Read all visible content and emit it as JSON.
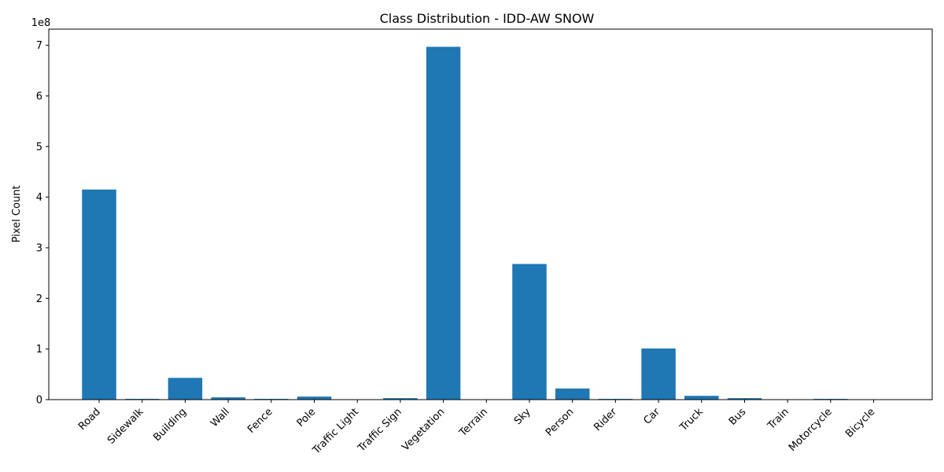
{
  "chart_data": {
    "type": "bar",
    "title": "Class Distribution - IDD-AW SNOW",
    "xlabel": "",
    "ylabel": "Pixel Count",
    "offset_label": "1e8",
    "categories": [
      "Road",
      "Sidewalk",
      "Building",
      "Wall",
      "Fence",
      "Pole",
      "Traffic Light",
      "Traffic Sign",
      "Vegetation",
      "Terrain",
      "Sky",
      "Person",
      "Rider",
      "Car",
      "Truck",
      "Bus",
      "Train",
      "Motorcycle",
      "Bicycle"
    ],
    "values": [
      415000000,
      1500000,
      43000000,
      4500000,
      1500000,
      6000000,
      0,
      3000000,
      697000000,
      0,
      268000000,
      22000000,
      1500000,
      101000000,
      7500000,
      3000000,
      0,
      1500000,
      0
    ],
    "yticks": [
      0,
      1,
      2,
      3,
      4,
      5,
      6,
      7
    ],
    "ytick_scale": 100000000,
    "ylim": [
      0,
      732000000
    ],
    "grid": false,
    "bar_color": "#1f77b4"
  }
}
